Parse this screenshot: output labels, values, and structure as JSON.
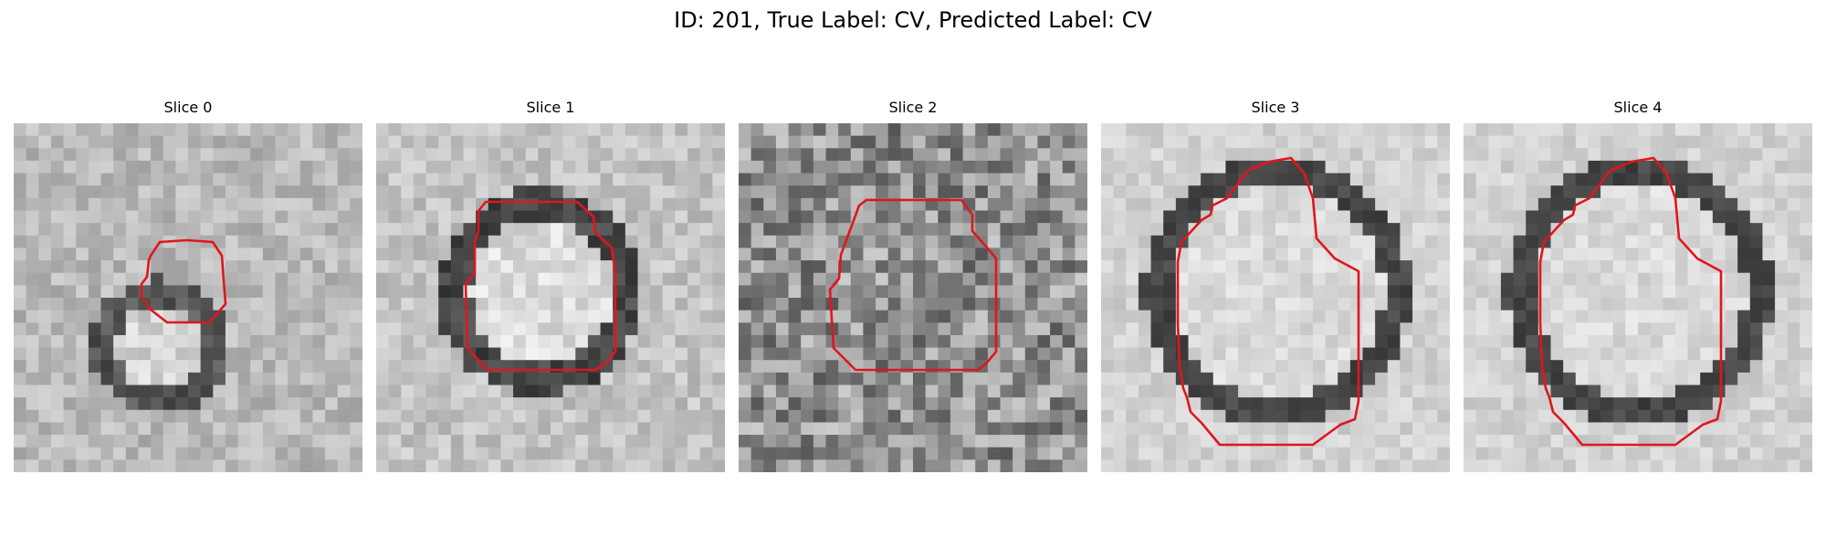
{
  "figure": {
    "title": "ID: 201, True Label: CV, Predicted Label: CV"
  },
  "colors": {
    "contour": "#e0161b",
    "background": "#ffffff"
  },
  "slices": [
    {
      "title": "Slice 0",
      "style": "small-ring"
    },
    {
      "title": "Slice 1",
      "style": "medium-ring"
    },
    {
      "title": "Slice 2",
      "style": "noisy"
    },
    {
      "title": "Slice 3",
      "style": "large-ring"
    },
    {
      "title": "Slice 4",
      "style": "large-ring"
    }
  ]
}
